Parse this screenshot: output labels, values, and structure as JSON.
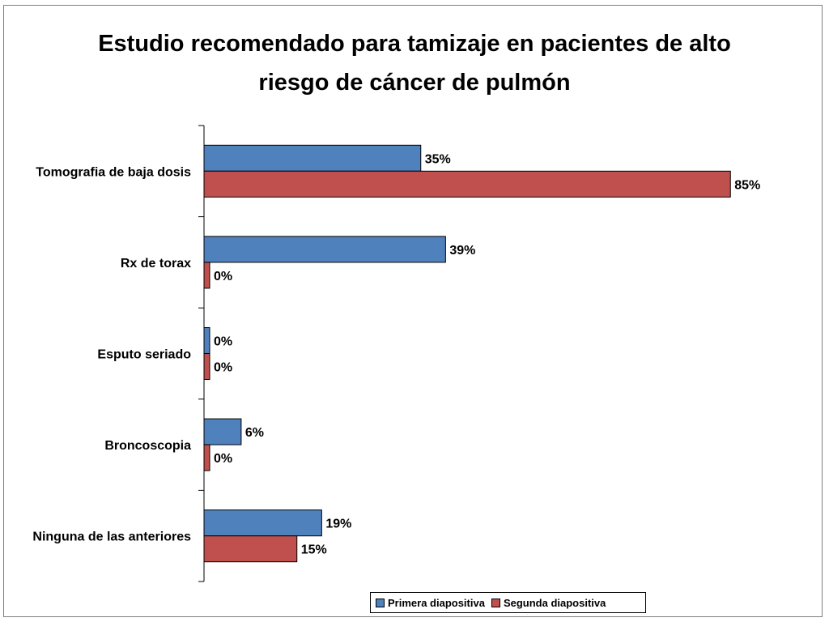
{
  "chart_data": {
    "type": "bar",
    "orientation": "horizontal",
    "title": "Estudio recomendado para tamizaje en pacientes de alto\nriesgo de cáncer de pulmón",
    "categories": [
      "Tomografia de baja dosis",
      "Rx de torax",
      "Esputo seriado",
      "Broncoscopia",
      "Ninguna de las anteriores"
    ],
    "series": [
      {
        "name": "Primera diapositiva",
        "color": "#4f81bd",
        "values": [
          35,
          39,
          0,
          6,
          19
        ],
        "labels": [
          "35%",
          "39%",
          "0%",
          "6%",
          "19%"
        ]
      },
      {
        "name": "Segunda diapositiva",
        "color": "#c0504d",
        "values": [
          85,
          0,
          0,
          0,
          15
        ],
        "labels": [
          "85%",
          "0%",
          "0%",
          "0%",
          "15%"
        ]
      }
    ],
    "value_unit": "%",
    "xlim": [
      0,
      90
    ],
    "grid": false,
    "legend_position": "bottom-right"
  }
}
